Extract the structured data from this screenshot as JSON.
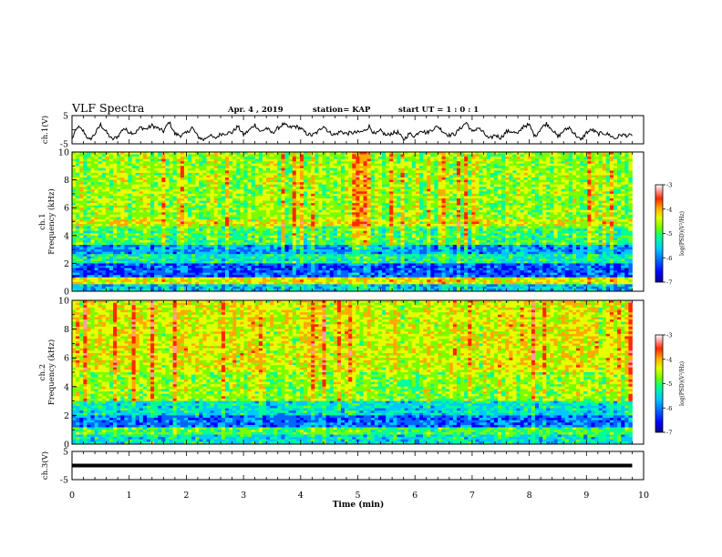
{
  "header": {
    "title": "VLF Spectra",
    "date": "Apr. 4 , 2019",
    "station": "station= KAP",
    "start": "start  UT =  1 : 0  : 1"
  },
  "chart_data": [
    {
      "type": "line",
      "name": "ch1-waveform",
      "ylabel": "ch.1(V)",
      "xlim": [
        0,
        10
      ],
      "ylim": [
        -5,
        5
      ],
      "yticks": [
        "5",
        "-5"
      ],
      "description_of_values": "sampled waveform level in V vs time in min",
      "x": [
        0.0,
        0.1,
        0.2,
        0.3,
        0.4,
        0.5,
        0.6,
        0.7,
        0.8,
        0.9,
        1.0,
        1.1,
        1.2,
        1.3,
        1.4,
        1.5,
        1.6,
        1.7,
        1.8,
        1.9,
        2.0,
        2.1,
        2.2,
        2.3,
        2.4,
        2.5,
        2.6,
        2.7,
        2.8,
        2.9,
        3.0,
        3.1,
        3.2,
        3.3,
        3.4,
        3.5,
        3.6,
        3.7,
        3.8,
        3.9,
        4.0,
        4.1,
        4.2,
        4.3,
        4.4,
        4.5,
        4.6,
        4.7,
        4.8,
        4.9,
        5.0,
        5.1,
        5.2,
        5.3,
        5.4,
        5.5,
        5.6,
        5.7,
        5.8,
        5.9,
        6.0,
        6.1,
        6.2,
        6.3,
        6.4,
        6.5,
        6.6,
        6.7,
        6.8,
        6.9,
        7.0,
        7.1,
        7.2,
        7.3,
        7.4,
        7.5,
        7.6,
        7.7,
        7.8,
        7.9,
        8.0,
        8.1,
        8.2,
        8.3,
        8.4,
        8.5,
        8.6,
        8.7,
        8.8,
        8.9,
        9.0,
        9.1,
        9.2,
        9.3,
        9.4,
        9.5,
        9.6,
        9.7,
        9.8
      ],
      "y": [
        -3.2,
        1.0,
        -0.5,
        -3.8,
        -1.5,
        1.8,
        -0.8,
        -3.5,
        -2.4,
        0.5,
        -0.8,
        -1.2,
        0.8,
        0.2,
        1.5,
        0.5,
        -0.6,
        2.8,
        -1.5,
        -2.0,
        -1.3,
        0.8,
        -2.4,
        -3.6,
        -1.9,
        -3.2,
        -1.5,
        -1.2,
        -1.0,
        1.2,
        -1.8,
        -0.2,
        1.8,
        -0.8,
        0.6,
        -1.2,
        0.5,
        2.0,
        0.7,
        1.2,
        0.5,
        -1.4,
        -2.0,
        -0.8,
        1.5,
        -1.0,
        -1.8,
        -0.6,
        -1.4,
        -1.1,
        -1.0,
        -0.6,
        1.2,
        -1.8,
        -0.4,
        -2.1,
        -1.2,
        -0.9,
        -3.6,
        -1.4,
        -2.3,
        0.0,
        -1.2,
        0.1,
        1.2,
        -0.8,
        -2.0,
        -1.5,
        0.6,
        2.6,
        -0.9,
        0.8,
        -1.1,
        -3.4,
        -1.8,
        -2.9,
        -0.7,
        -0.6,
        -1.6,
        1.4,
        1.6,
        -2.4,
        0.4,
        2.2,
        0.2,
        -2.6,
        -0.4,
        0.8,
        -1.6,
        -3.8,
        -1.0,
        0.0,
        -1.5,
        -1.2,
        -1.8,
        -3.2,
        -1.8,
        -2.0,
        -2.2
      ]
    },
    {
      "type": "heatmap",
      "name": "ch1-spectrogram",
      "ylabel": "ch.1\nFrequency (kHz)",
      "xlim": [
        0,
        10
      ],
      "ylim": [
        0,
        10
      ],
      "yticks": [
        "0",
        "2",
        "4",
        "6",
        "8",
        "10"
      ],
      "zlabel": "log(PSD)(V²/Hz)",
      "zlim": [
        -7,
        -3
      ],
      "zticks": [
        "-3",
        "-4",
        "-5",
        "-6",
        "-7"
      ],
      "band_profile_khz": [
        {
          "f": [
            0.0,
            0.5
          ],
          "level": -5.8
        },
        {
          "f": [
            0.5,
            1.0
          ],
          "level": -4.6
        },
        {
          "f": [
            1.0,
            2.0
          ],
          "level": -6.3
        },
        {
          "f": [
            2.0,
            2.6
          ],
          "level": -5.5
        },
        {
          "f": [
            2.6,
            3.4
          ],
          "level": -6.0
        },
        {
          "f": [
            3.4,
            4.6
          ],
          "level": -5.2
        },
        {
          "f": [
            4.6,
            5.2
          ],
          "level": -4.6
        },
        {
          "f": [
            5.2,
            10.0
          ],
          "level": -4.9
        }
      ]
    },
    {
      "type": "heatmap",
      "name": "ch2-spectrogram",
      "ylabel": "ch.2\nFrequency (kHz)",
      "xlim": [
        0,
        10
      ],
      "ylim": [
        0,
        10
      ],
      "yticks": [
        "0",
        "2",
        "4",
        "6",
        "8",
        "10"
      ],
      "zlabel": "log(PSD)(V²/Hz)",
      "zlim": [
        -7,
        -3
      ],
      "zticks": [
        "-3",
        "-4",
        "-5",
        "-6",
        "-7"
      ],
      "band_profile_khz": [
        {
          "f": [
            0.0,
            0.6
          ],
          "level": -5.6
        },
        {
          "f": [
            0.6,
            1.2
          ],
          "level": -5.2
        },
        {
          "f": [
            1.2,
            2.0
          ],
          "level": -6.2
        },
        {
          "f": [
            2.0,
            3.0
          ],
          "level": -5.6
        },
        {
          "f": [
            3.0,
            5.0
          ],
          "level": -4.9
        },
        {
          "f": [
            5.0,
            10.0
          ],
          "level": -4.6
        }
      ]
    },
    {
      "type": "line",
      "name": "ch3-waveform",
      "ylabel": "ch.3(V)",
      "xlim": [
        0,
        10
      ],
      "ylim": [
        -5,
        5
      ],
      "yticks": [
        "5",
        "-5"
      ],
      "x": [
        0,
        9.8
      ],
      "y": [
        0,
        0
      ]
    }
  ],
  "xaxis": {
    "label": "Time (min)",
    "ticks": [
      "0",
      "1",
      "2",
      "3",
      "4",
      "5",
      "6",
      "7",
      "8",
      "9",
      "10"
    ]
  },
  "colormap": [
    "#0a008c",
    "#0000ff",
    "#0064ff",
    "#00c8ff",
    "#00ff96",
    "#78ff00",
    "#e6ff00",
    "#ffaa00",
    "#ff2800",
    "#ffa0a0",
    "#ffffff"
  ]
}
